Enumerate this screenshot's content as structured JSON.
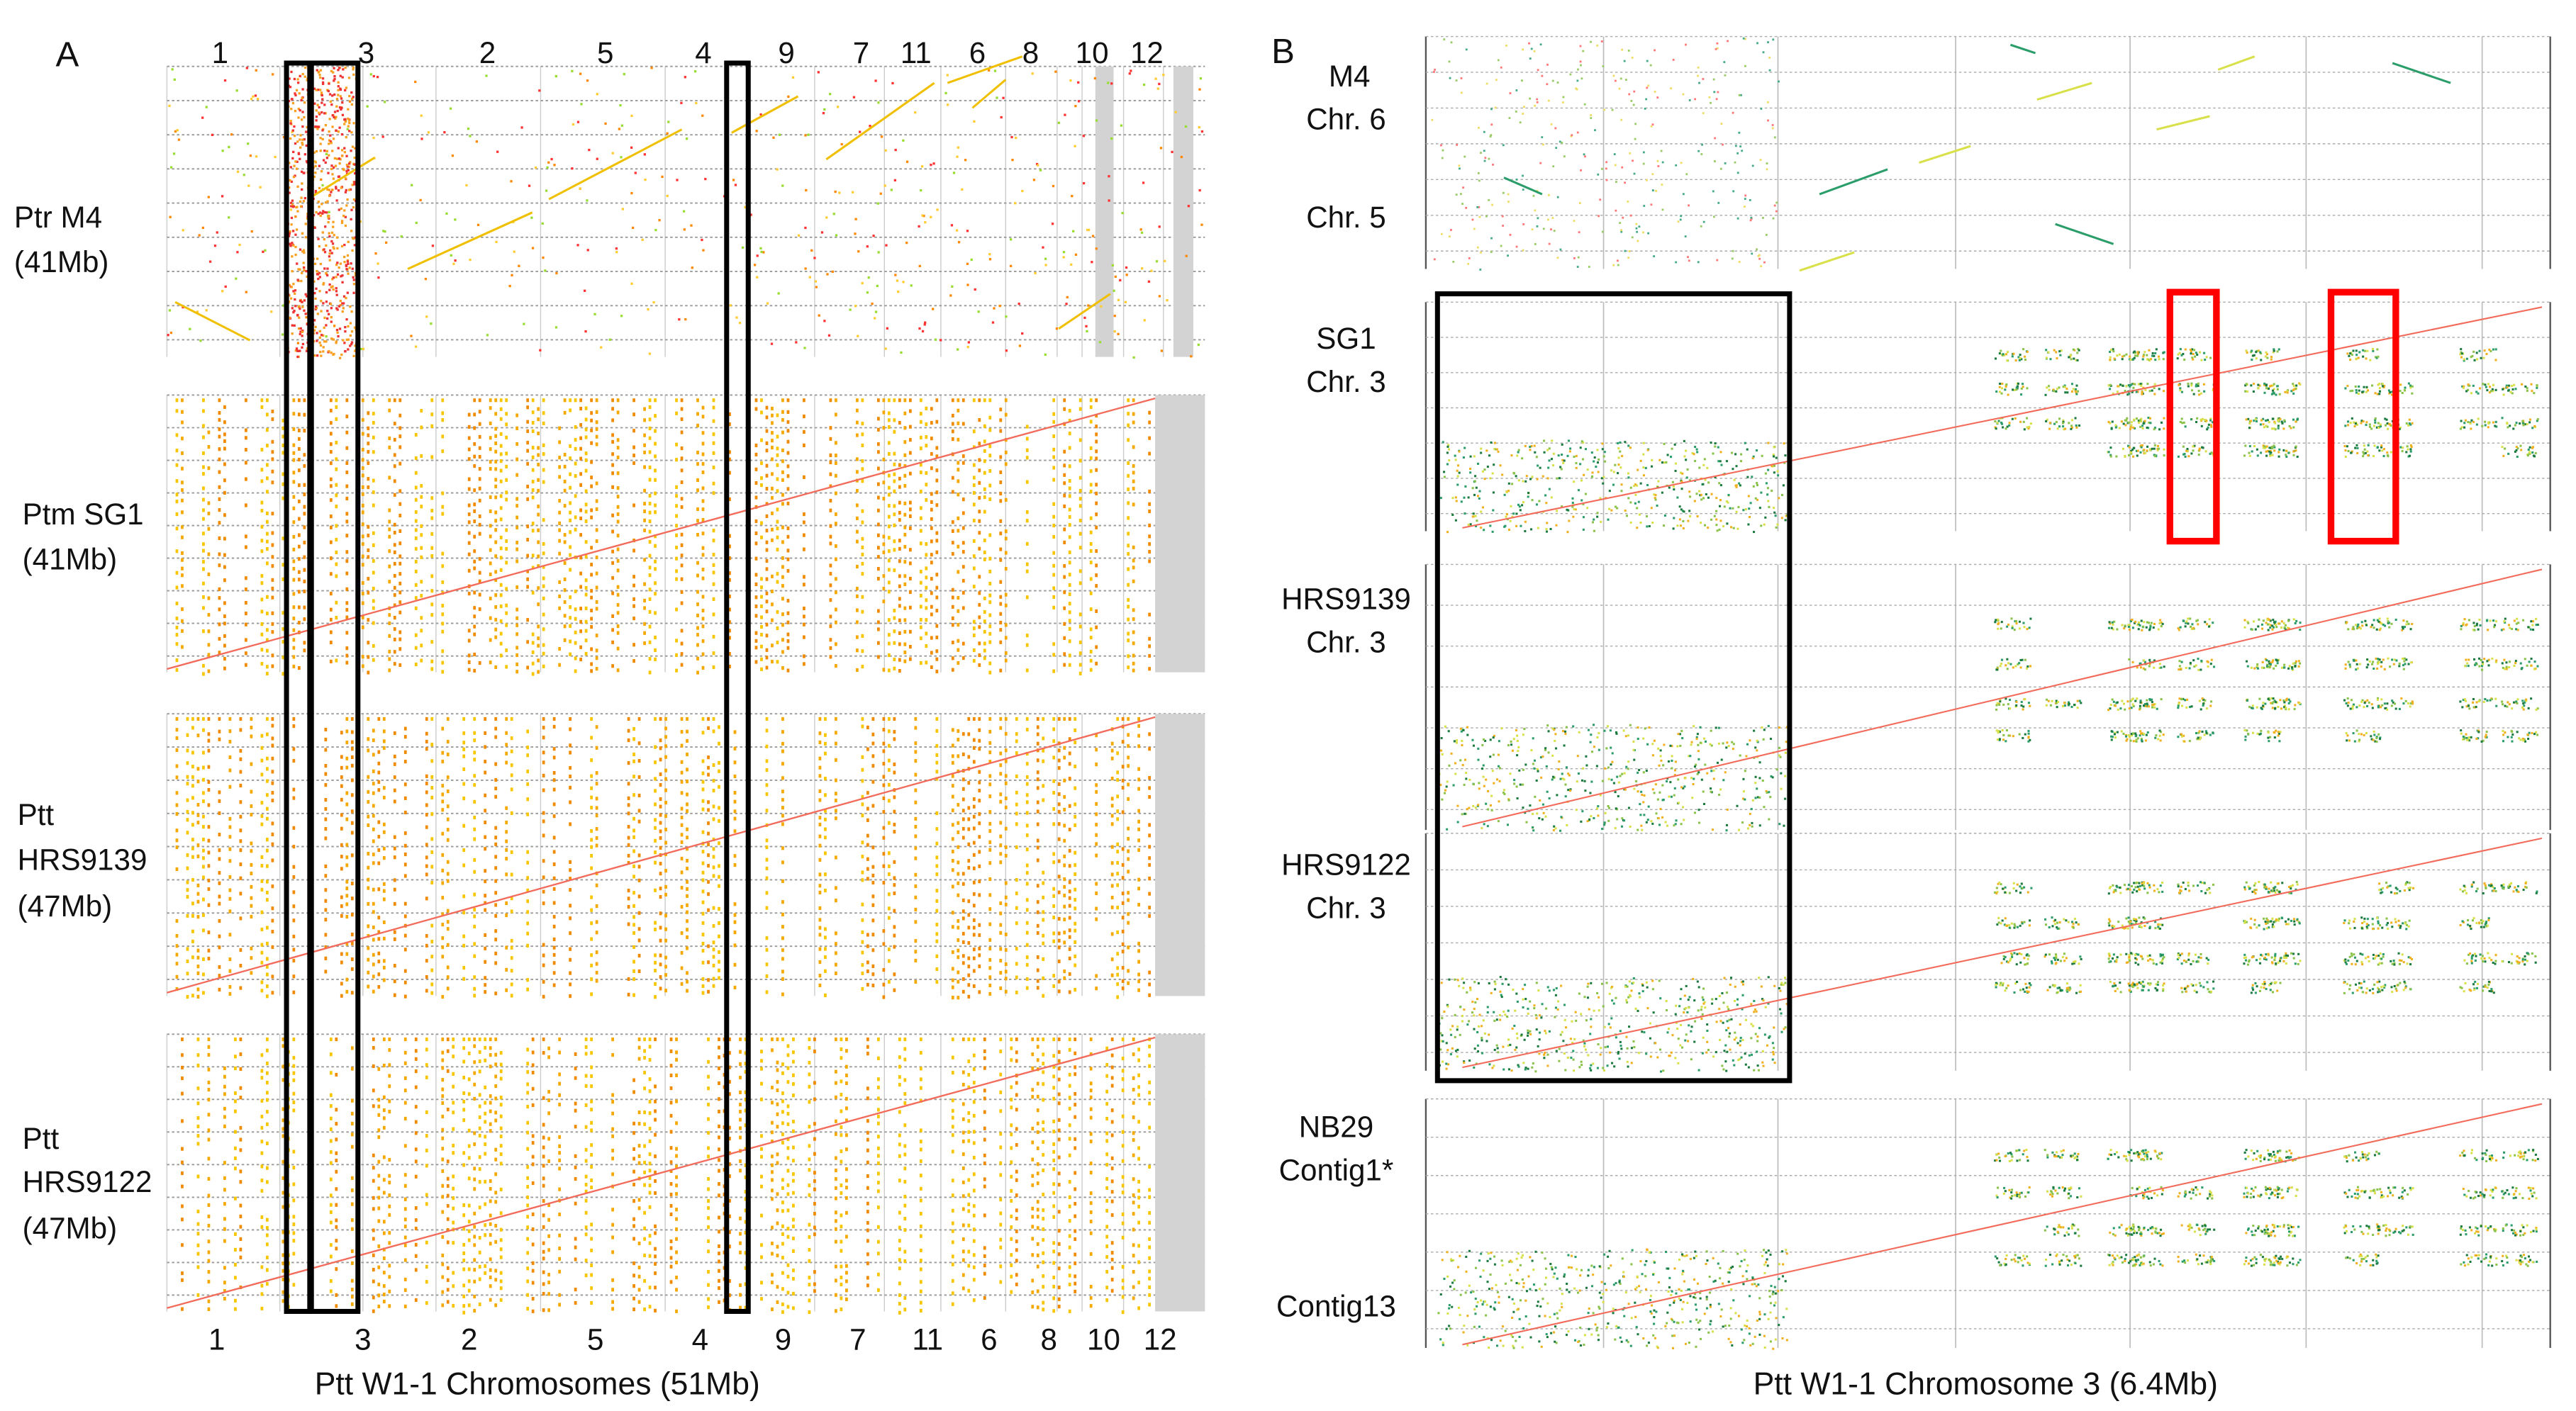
{
  "panel_a": {
    "letter": "A",
    "chromosome_order": [
      "1",
      "3",
      "2",
      "5",
      "4",
      "9",
      "7",
      "11",
      "6",
      "8",
      "10",
      "12"
    ],
    "rows": [
      {
        "lines": [
          "Ptr M4",
          "(41Mb)"
        ]
      },
      {
        "lines": [
          "Ptm SG1",
          "(41Mb)"
        ]
      },
      {
        "lines": [
          "Ptt",
          "HRS9139",
          "(47Mb)"
        ]
      },
      {
        "lines": [
          "Ptt",
          "HRS9122",
          "(47Mb)"
        ]
      }
    ],
    "x_title": "Ptt W1-1 Chromosomes (51Mb)"
  },
  "panel_b": {
    "letter": "B",
    "rows": [
      {
        "lines": [
          "M4",
          "Chr. 6"
        ],
        "extra": "Chr. 5"
      },
      {
        "lines": [
          "SG1",
          "Chr. 3"
        ]
      },
      {
        "lines": [
          "HRS9139",
          "Chr. 3"
        ]
      },
      {
        "lines": [
          "HRS9122",
          "Chr. 3"
        ]
      },
      {
        "lines": [
          "NB29",
          "Contig1*"
        ],
        "extra": "Contig13"
      }
    ],
    "x_title": "Ptt W1-1 Chromosome 3 (6.4Mb)"
  },
  "colors": {
    "highlight_black": "#000000",
    "highlight_red": "#ff0000",
    "diagonal": "#f26b5b",
    "band": "#f5a800"
  }
}
